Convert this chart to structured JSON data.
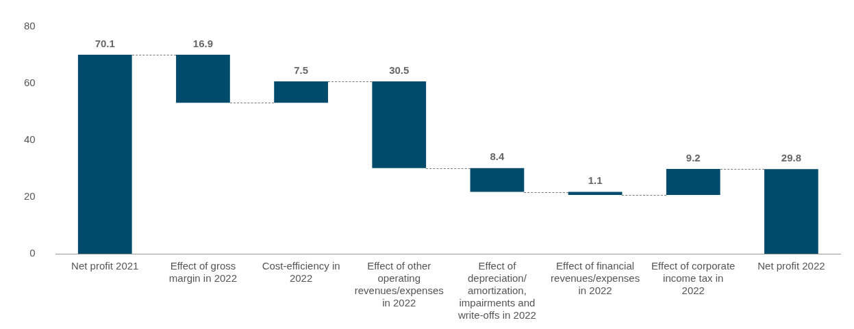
{
  "chart_data": {
    "type": "bar",
    "categories": [
      "Net profit 2021",
      "Effect of gross margin in 2022",
      "Cost-efficiency in 2022",
      "Effect of other operating revenues/expenses in 2022",
      "Effect of depreciation/ amortization, impairments and write-offs in 2022",
      "Effect of financial revenues/expenses in 2022",
      "Effect of corporate income tax in 2022",
      "Net profit 2022"
    ],
    "values": [
      70.1,
      16.9,
      7.5,
      30.5,
      8.4,
      1.1,
      9.2,
      29.8
    ],
    "base": [
      0,
      53.2,
      53.2,
      30.2,
      21.8,
      20.7,
      20.7,
      0
    ],
    "color": "#004b6b",
    "data_labels": true,
    "ylim": [
      0,
      80
    ],
    "yticks": [
      0,
      20,
      40,
      60,
      80
    ],
    "grid": false,
    "legend": false
  }
}
